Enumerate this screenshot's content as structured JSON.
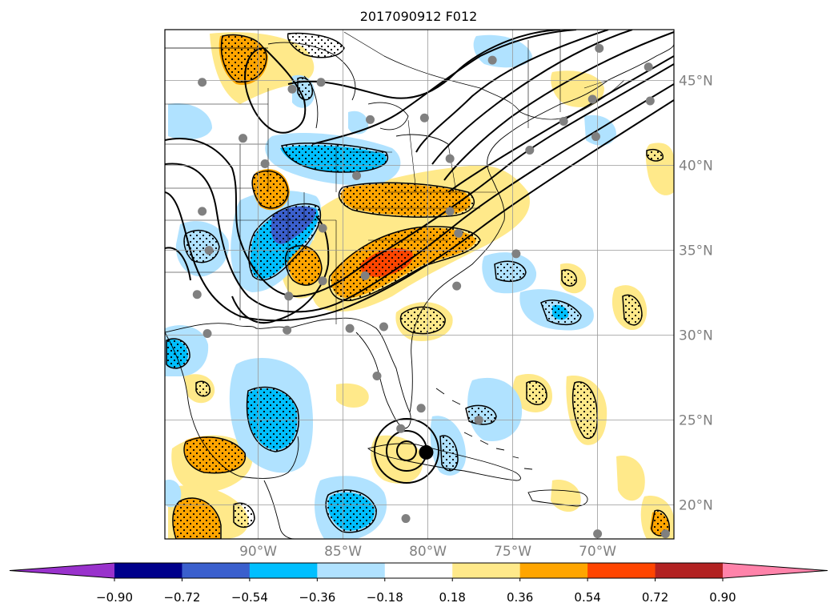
{
  "title": "2017090912 F012",
  "map": {
    "lon_range": [
      -95.5,
      -65.5
    ],
    "lat_range": [
      18,
      48
    ],
    "lon_ticks": [
      {
        "value": -90,
        "label": "90°W"
      },
      {
        "value": -85,
        "label": "85°W"
      },
      {
        "value": -80,
        "label": "80°W"
      },
      {
        "value": -75,
        "label": "75°W"
      },
      {
        "value": -70,
        "label": "70°W"
      }
    ],
    "lat_ticks": [
      {
        "value": 20,
        "label": "20°N"
      },
      {
        "value": 25,
        "label": "25°N"
      },
      {
        "value": 30,
        "label": "30°N"
      },
      {
        "value": 35,
        "label": "35°N"
      },
      {
        "value": 40,
        "label": "40°N"
      },
      {
        "value": 45,
        "label": "45°N"
      }
    ],
    "grid": true,
    "tick_label_color": "#808080",
    "storm_center": {
      "lon": -80.1,
      "lat": 23.1
    },
    "stations": [
      [
        -93.3,
        44.9
      ],
      [
        -88.0,
        44.5
      ],
      [
        -86.3,
        44.9
      ],
      [
        -83.4,
        42.7
      ],
      [
        -80.2,
        42.8
      ],
      [
        -78.7,
        40.4
      ],
      [
        -76.2,
        46.2
      ],
      [
        -69.9,
        46.9
      ],
      [
        -67.0,
        45.8
      ],
      [
        -72.0,
        42.6
      ],
      [
        -70.3,
        43.9
      ],
      [
        -74.0,
        40.9
      ],
      [
        -70.1,
        41.7
      ],
      [
        -66.9,
        43.8
      ],
      [
        -90.9,
        41.6
      ],
      [
        -89.6,
        40.1
      ],
      [
        -84.2,
        39.4
      ],
      [
        -78.7,
        37.3
      ],
      [
        -93.3,
        37.3
      ],
      [
        -92.9,
        35.0
      ],
      [
        -86.2,
        36.3
      ],
      [
        -78.2,
        36.0
      ],
      [
        -74.8,
        34.8
      ],
      [
        -86.2,
        33.2
      ],
      [
        -83.7,
        33.5
      ],
      [
        -93.6,
        32.4
      ],
      [
        -88.2,
        32.3
      ],
      [
        -78.3,
        32.9
      ],
      [
        -93.0,
        30.1
      ],
      [
        -88.3,
        30.3
      ],
      [
        -84.6,
        30.4
      ],
      [
        -82.6,
        30.5
      ],
      [
        -83.0,
        27.6
      ],
      [
        -80.4,
        25.7
      ],
      [
        -81.6,
        24.5
      ],
      [
        -77.0,
        25.0
      ],
      [
        -81.3,
        19.2
      ],
      [
        -70.0,
        18.3
      ],
      [
        -66.0,
        18.3
      ]
    ],
    "fill_levels": [
      0.18,
      0.36,
      0.54,
      0.72
    ]
  },
  "colorbar": {
    "colors": [
      "#9932cc",
      "#00008b",
      "#3a5fcd",
      "#00bfff",
      "#b0e2ff",
      "#ffffff",
      "#ffe98a",
      "#ffa500",
      "#ff4500",
      "#b22222",
      "#ff83aa"
    ],
    "tick_labels": [
      "−0.90",
      "−0.72",
      "−0.54",
      "−0.36",
      "−0.18",
      "0.18",
      "0.36",
      "0.54",
      "0.72",
      "0.90"
    ],
    "extend": "both"
  },
  "colors": {
    "pos_fill": [
      "#ffe98a",
      "#ffa500",
      "#ff4500",
      "#b22222"
    ],
    "neg_fill": [
      "#b0e2ff",
      "#00bfff",
      "#3a5fcd",
      "#00008b"
    ],
    "station": "#808080",
    "contour": "#000000"
  }
}
